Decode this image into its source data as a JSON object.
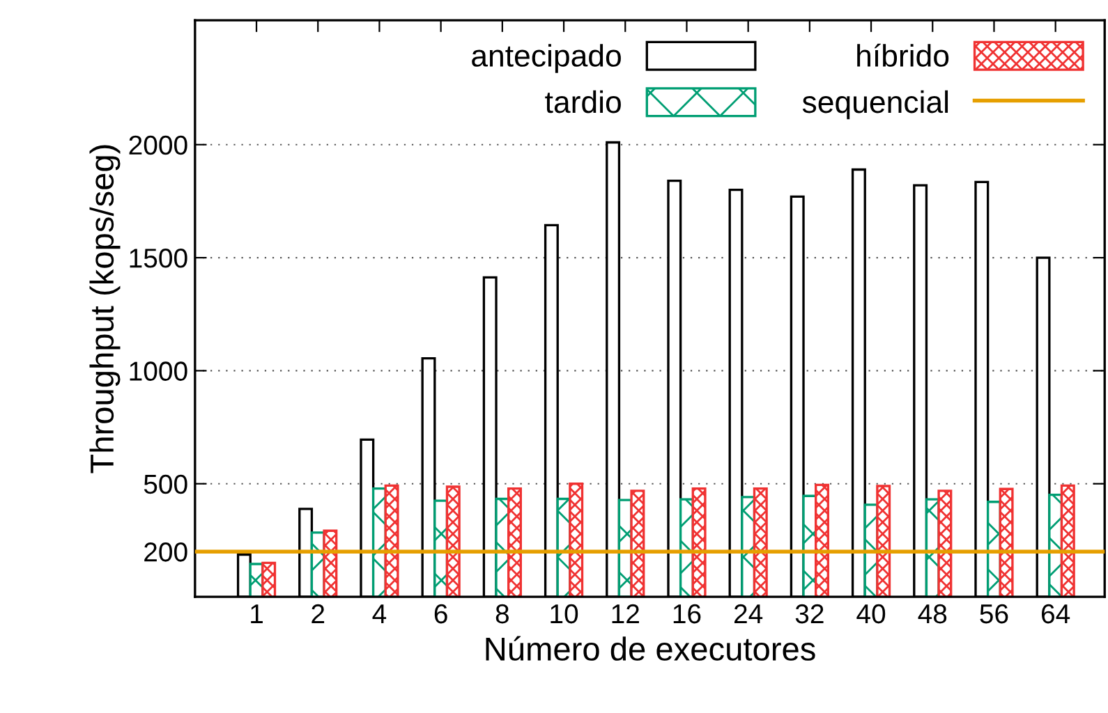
{
  "chart_data": {
    "type": "bar",
    "xlabel": "Número de executores",
    "ylabel": "Throughput (kops/seg)",
    "categories": [
      "1",
      "2",
      "4",
      "6",
      "8",
      "10",
      "12",
      "16",
      "24",
      "32",
      "40",
      "48",
      "56",
      "64"
    ],
    "series": [
      {
        "name": "antecipado",
        "color": "#000000",
        "values": [
          186,
          389,
          695,
          1055,
          1413,
          1644,
          2010,
          1840,
          1800,
          1770,
          1890,
          1820,
          1835,
          1500
        ]
      },
      {
        "name": "tardio",
        "color": "#009e73",
        "values": [
          145,
          284,
          479,
          425,
          433,
          433,
          428,
          431,
          441,
          446,
          407,
          431,
          420,
          451
        ]
      },
      {
        "name": "híbrido",
        "color": "#f03232",
        "values": [
          150,
          292,
          492,
          487,
          479,
          500,
          469,
          479,
          479,
          495,
          490,
          469,
          477,
          492
        ]
      }
    ],
    "ref_lines": [
      {
        "axis": "y",
        "value": 200,
        "label": "sequencial",
        "color": "#e69f00"
      }
    ],
    "ylim": [
      0,
      2550
    ],
    "yticks": [
      200,
      500,
      1000,
      1500,
      2000
    ],
    "grid": "y",
    "legend": "top right"
  }
}
